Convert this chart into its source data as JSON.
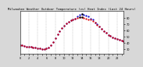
{
  "title": "Milwaukee Weather Outdoor Temperature (vs) Heat Index (Last 24 Hours)",
  "bg_color": "#d8d8d8",
  "plot_bg_color": "#ffffff",
  "temp_color": "#dd0000",
  "heat_color": "#0000cc",
  "black_color": "#000000",
  "ylim": [
    22,
    92
  ],
  "yticks": [
    30,
    40,
    50,
    60,
    70,
    80
  ],
  "hours": [
    0,
    0.5,
    1,
    1.5,
    2,
    2.5,
    3,
    3.5,
    4,
    4.5,
    5,
    5.5,
    6,
    6.5,
    7,
    7.5,
    8,
    8.5,
    9,
    9.5,
    10,
    10.5,
    11,
    11.5,
    12,
    12.5,
    13,
    13.5,
    14,
    14.5,
    15,
    15.5,
    16,
    16.5,
    17,
    17.5,
    18,
    18.5,
    19,
    19.5,
    20,
    20.5,
    21,
    21.5,
    22,
    22.5,
    23,
    23.5
  ],
  "temp": [
    36,
    36,
    35,
    34,
    33,
    33,
    32,
    32,
    31,
    31,
    30,
    30,
    31,
    32,
    36,
    41,
    48,
    54,
    59,
    64,
    68,
    71,
    74,
    76,
    78,
    79,
    80,
    81,
    81,
    80,
    79,
    78,
    77,
    75,
    72,
    69,
    66,
    62,
    59,
    56,
    53,
    51,
    49,
    47,
    46,
    45,
    44,
    43
  ],
  "heat": [
    36,
    36,
    35,
    34,
    33,
    33,
    32,
    32,
    31,
    31,
    30,
    30,
    31,
    32,
    36,
    41,
    48,
    54,
    59,
    64,
    68,
    71,
    74,
    76,
    78,
    79,
    83,
    85,
    86,
    85,
    84,
    82,
    79,
    77,
    73,
    70,
    66,
    62,
    59,
    56,
    53,
    51,
    49,
    47,
    46,
    45,
    44,
    43
  ],
  "grid_positions": [
    0,
    2,
    4,
    6,
    8,
    10,
    12,
    14,
    16,
    18,
    20,
    22
  ],
  "xlim": [
    0,
    23.5
  ],
  "xtick_positions": [
    0,
    1,
    2,
    3,
    4,
    5,
    6,
    7,
    8,
    9,
    10,
    11,
    12,
    13,
    14,
    15,
    16,
    17,
    18,
    19,
    20,
    21,
    22,
    23
  ],
  "title_fontsize": 2.8,
  "tick_fontsize": 2.5,
  "marker_size": 1.2
}
